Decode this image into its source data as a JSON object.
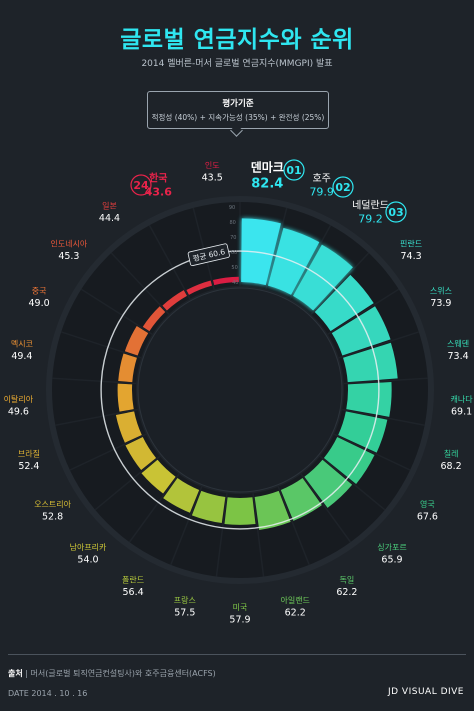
{
  "header": {
    "title": "글로벌 연금지수와 순위",
    "subtitle": "2014 멜버른-머서 글로벌 연금지수(MMGPI) 발표"
  },
  "criteria": {
    "title": "평가기준",
    "detail": "적정성 (40%) + 지속가능성 (35%) + 완전성 (25%)"
  },
  "chart_data": {
    "type": "bar",
    "layout": "radial",
    "average_label": "평균 60.6",
    "average": 60.6,
    "scale_max": 90,
    "scale_ticks": [
      "90",
      "80",
      "70",
      "60",
      "50",
      "40"
    ],
    "categories": [
      "덴마크",
      "호주",
      "네덜란드",
      "핀란드",
      "스위스",
      "스웨덴",
      "캐나다",
      "칠레",
      "영국",
      "싱가포르",
      "독일",
      "아일랜드",
      "미국",
      "프랑스",
      "폴란드",
      "남아프리카",
      "오스트리아",
      "브라질",
      "이탈리아",
      "멕시코",
      "중국",
      "인도네시아",
      "일본",
      "한국",
      "인도"
    ],
    "values": [
      82.4,
      79.9,
      79.2,
      74.3,
      73.9,
      73.4,
      69.1,
      68.2,
      67.6,
      65.9,
      62.2,
      62.2,
      57.9,
      57.5,
      56.4,
      54.0,
      52.8,
      52.4,
      49.6,
      49.4,
      49.0,
      45.3,
      44.4,
      43.6,
      43.5
    ],
    "value_labels": [
      "82.4",
      "79.9",
      "79.2",
      "74.3",
      "73.9",
      "73.4",
      "69.1",
      "68.2",
      "67.6",
      "65.9",
      "62.2",
      "62.2",
      "57.9",
      "57.5",
      "56.4",
      "54.0",
      "52.8",
      "52.4",
      "49.6",
      "49.4",
      "49.0",
      "45.3",
      "44.4",
      "43.6",
      "43.5"
    ],
    "rank_badges": [
      {
        "label": "01",
        "country": "덴마크"
      },
      {
        "label": "02",
        "country": "호주"
      },
      {
        "label": "03",
        "country": "네덜란드"
      },
      {
        "label": "24",
        "country": "한국"
      }
    ]
  },
  "footer": {
    "source_label": "출처",
    "source_text": "머서(글로벌 퇴직연금컨설팅사)와 호주금융센터(ACFS)",
    "date": "DATE  2014 . 10 . 16",
    "logo": "VISUAL DIVE",
    "logo_mark": "JD"
  },
  "colors": {
    "accent": "#2fe6f0",
    "korea": "#e8234a",
    "background": "#1e2329"
  }
}
